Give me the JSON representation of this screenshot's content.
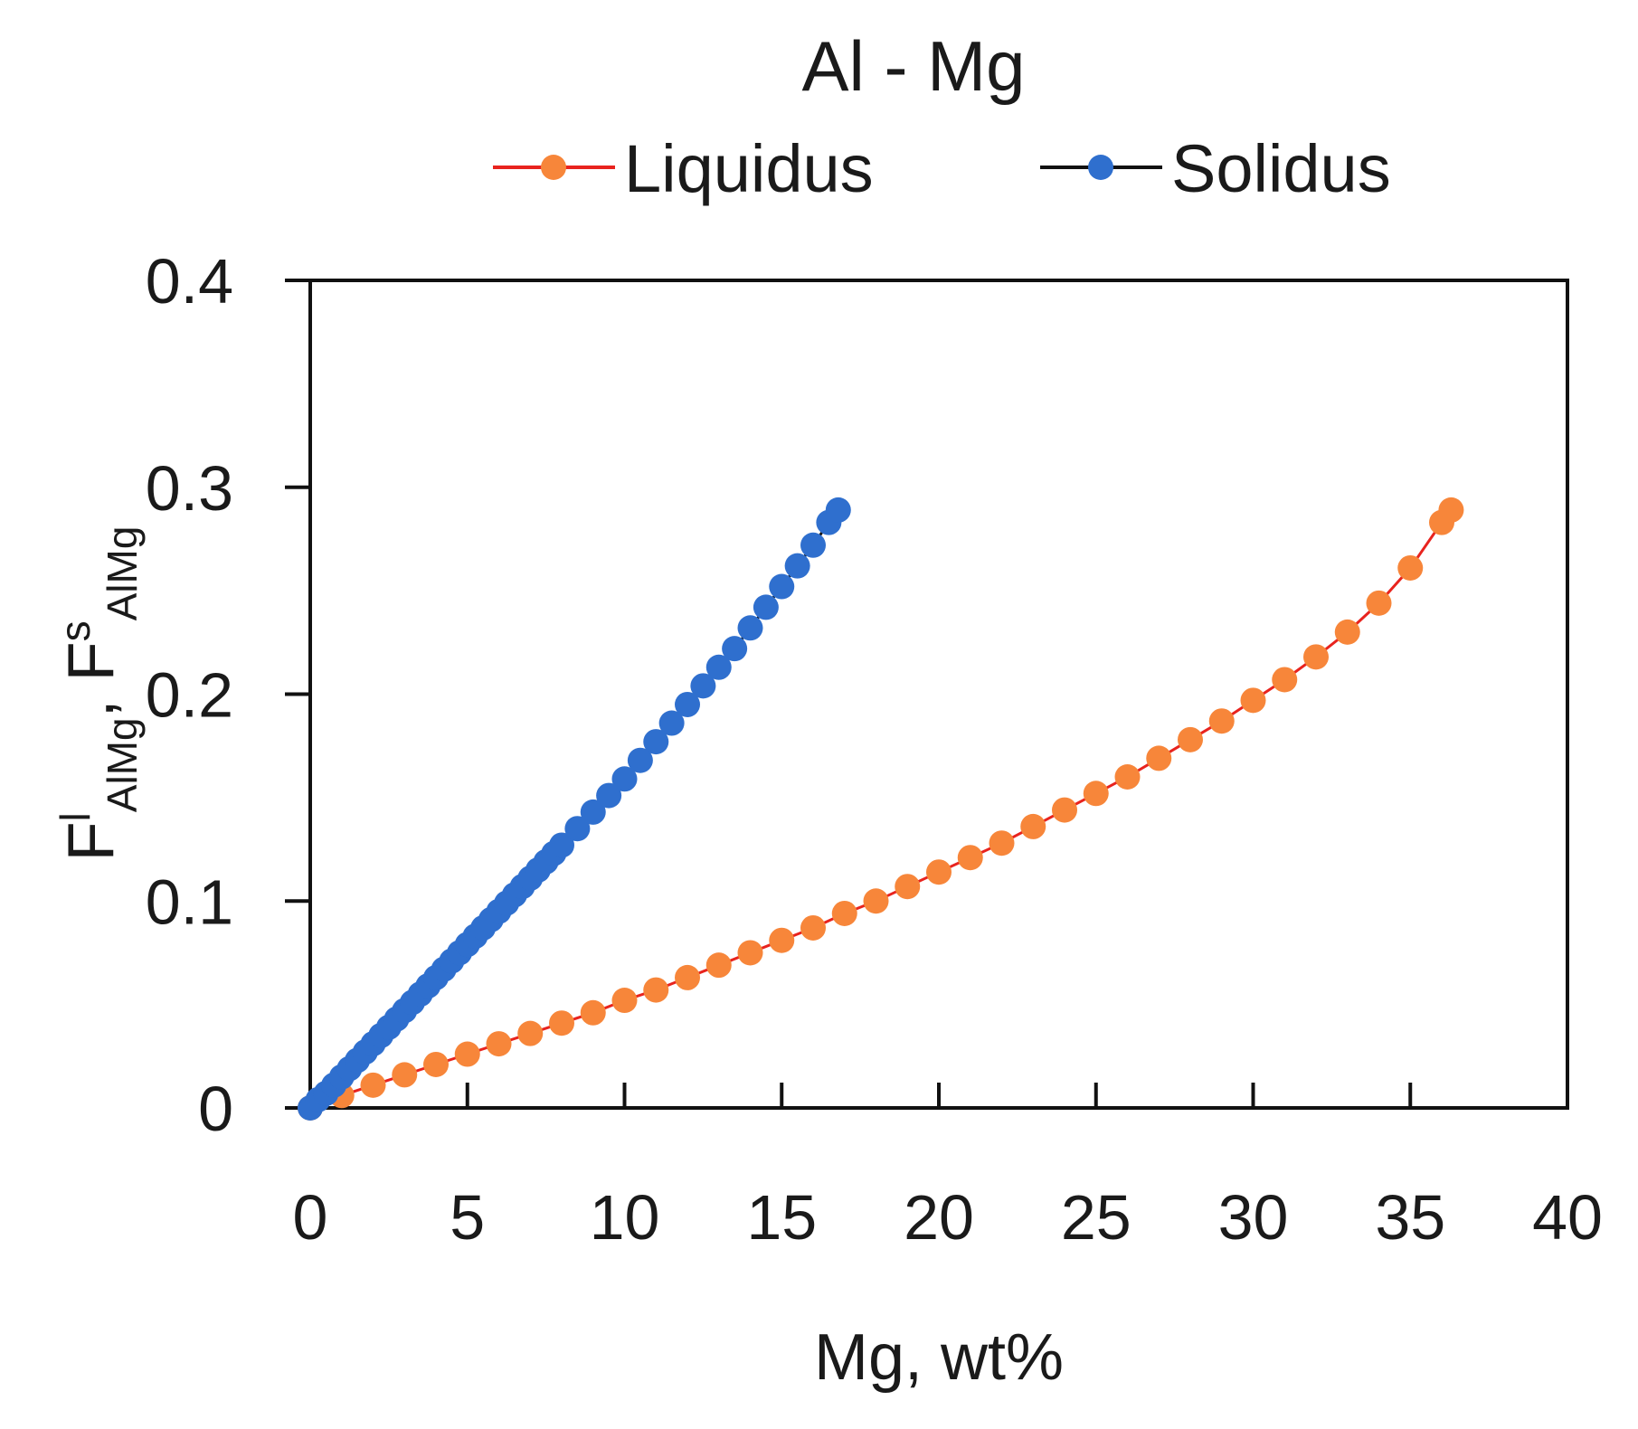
{
  "chart_data": {
    "type": "line",
    "title": "Al - Mg",
    "xlabel": "Mg, wt%",
    "ylabel_parts": {
      "f1": "F",
      "sup1": "l",
      "sub1": "AlMg",
      "sep": ", ",
      "f2": "F",
      "sup2": "s",
      "sub2": "AlMg"
    },
    "xlim": [
      0,
      40
    ],
    "ylim": [
      0,
      0.4
    ],
    "xticks": [
      "0",
      "5",
      "10",
      "15",
      "20",
      "25",
      "30",
      "35",
      "40"
    ],
    "yticks": [
      "0",
      "0.1",
      "0.2",
      "0.3",
      "0.4"
    ],
    "grid": false,
    "legend_position": "top",
    "series": [
      {
        "name": "Liquidus",
        "line_color": "#e8231e",
        "marker_color": "#f7863a",
        "x": [
          0,
          1,
          2,
          3,
          4,
          5,
          6,
          7,
          8,
          9,
          10,
          11,
          12,
          13,
          14,
          15,
          16,
          17,
          18,
          19,
          20,
          21,
          22,
          23,
          24,
          25,
          26,
          27,
          28,
          29,
          30,
          31,
          32,
          33,
          34,
          35,
          36,
          36.3
        ],
        "y": [
          0,
          0.006,
          0.011,
          0.016,
          0.021,
          0.026,
          0.031,
          0.036,
          0.041,
          0.046,
          0.052,
          0.057,
          0.063,
          0.069,
          0.075,
          0.081,
          0.087,
          0.094,
          0.1,
          0.107,
          0.114,
          0.121,
          0.128,
          0.136,
          0.144,
          0.152,
          0.16,
          0.169,
          0.178,
          0.187,
          0.197,
          0.207,
          0.218,
          0.23,
          0.244,
          0.261,
          0.283,
          0.289
        ]
      },
      {
        "name": "Solidus",
        "line_color": "#111111",
        "marker_color": "#2f6fce",
        "x": [
          0,
          0.25,
          0.5,
          0.75,
          1,
          1.25,
          1.5,
          1.75,
          2,
          2.25,
          2.5,
          2.75,
          3,
          3.25,
          3.5,
          3.75,
          4,
          4.25,
          4.5,
          4.75,
          5,
          5.25,
          5.5,
          5.75,
          6,
          6.25,
          6.5,
          6.75,
          7,
          7.25,
          7.5,
          7.75,
          8,
          8.5,
          9,
          9.5,
          10,
          10.5,
          11,
          11.5,
          12,
          12.5,
          13,
          13.5,
          14,
          14.5,
          15,
          15.5,
          16,
          16.5,
          16.8
        ],
        "y": [
          0,
          0.004,
          0.007,
          0.011,
          0.015,
          0.019,
          0.023,
          0.027,
          0.031,
          0.035,
          0.039,
          0.043,
          0.047,
          0.051,
          0.055,
          0.059,
          0.063,
          0.067,
          0.071,
          0.075,
          0.079,
          0.083,
          0.087,
          0.091,
          0.095,
          0.099,
          0.103,
          0.107,
          0.111,
          0.115,
          0.119,
          0.123,
          0.127,
          0.135,
          0.143,
          0.151,
          0.159,
          0.168,
          0.177,
          0.186,
          0.195,
          0.204,
          0.213,
          0.222,
          0.232,
          0.242,
          0.252,
          0.262,
          0.272,
          0.283,
          0.289
        ]
      }
    ]
  }
}
